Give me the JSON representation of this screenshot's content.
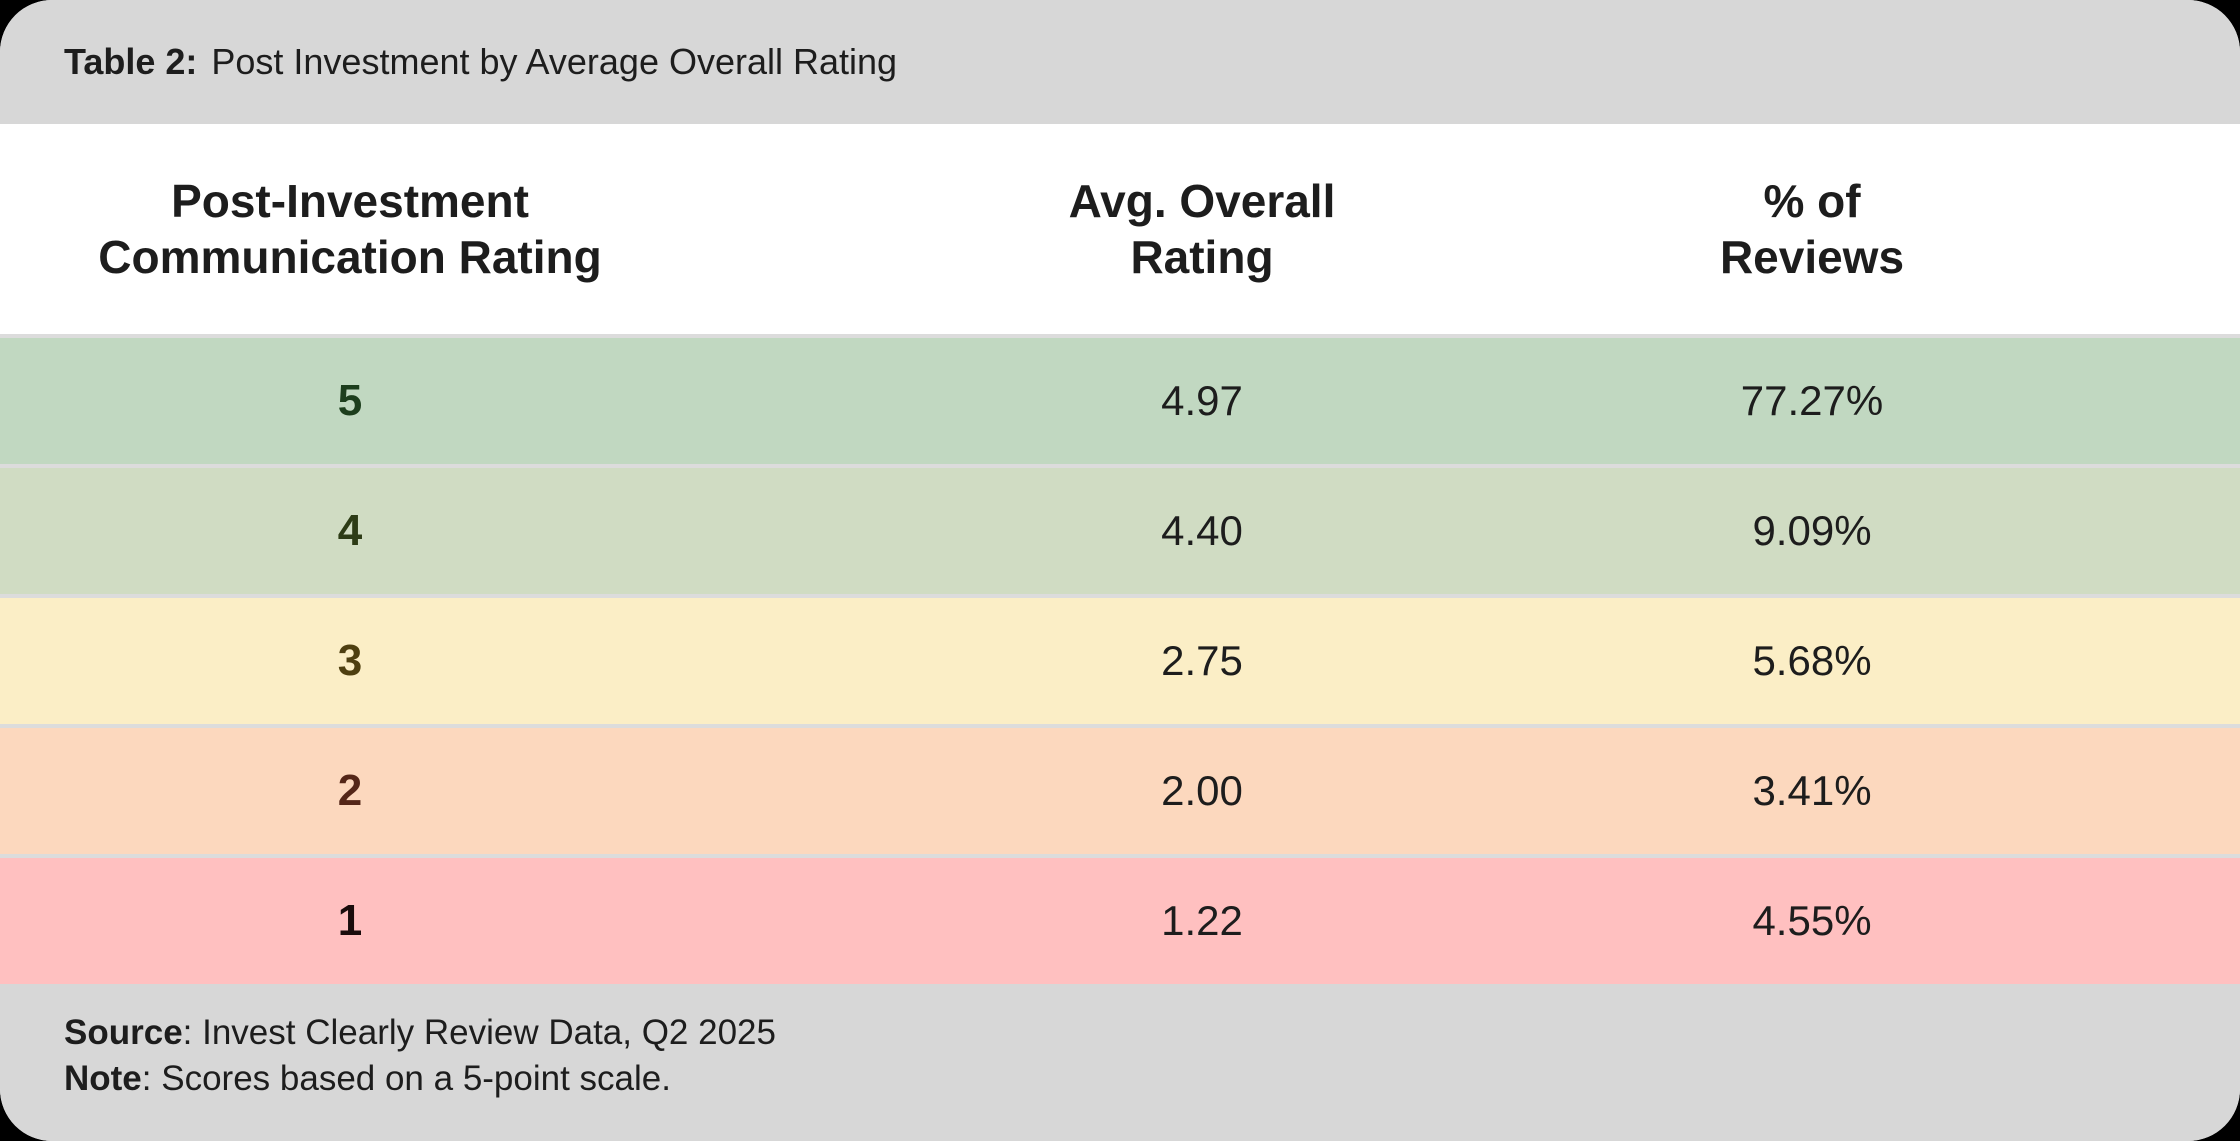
{
  "title": {
    "label": "Table 2:",
    "text": "Post Investment by Average Overall Rating"
  },
  "columns": [
    {
      "id": "communication_rating",
      "label": "Post-Investment\nCommunication Rating"
    },
    {
      "id": "avg_overall_rating",
      "label": "Avg. Overall\nRating"
    },
    {
      "id": "pct_of_reviews",
      "label": "% of\nReviews"
    }
  ],
  "rows": [
    {
      "rating": "5",
      "avg": "4.97",
      "pct": "77.27%",
      "bg": "#c1d8c1",
      "rating_color": "#1d3e1d"
    },
    {
      "rating": "4",
      "avg": "4.40",
      "pct": "9.09%",
      "bg": "#d0dcc3",
      "rating_color": "#2d3c16"
    },
    {
      "rating": "3",
      "avg": "2.75",
      "pct": "5.68%",
      "bg": "#fbeec6",
      "rating_color": "#4e3f10"
    },
    {
      "rating": "2",
      "avg": "2.00",
      "pct": "3.41%",
      "bg": "#fcd8be",
      "rating_color": "#542618"
    },
    {
      "rating": "1",
      "avg": "1.22",
      "pct": "4.55%",
      "bg": "#ffc0c0",
      "rating_color": "#1a0c0c"
    }
  ],
  "footer": {
    "source_label": "Source",
    "source_text": ": Invest Clearly Review Data, Q2 2025",
    "note_label": "Note",
    "note_text": ": Scores based on a 5-point scale."
  },
  "colors": {
    "page_bg": "#000000",
    "bar_bg": "#d7d7d7",
    "header_bg": "#ffffff",
    "separator": "#dcdcdc",
    "text": "#1d1d1d"
  },
  "chart_data": {
    "type": "table",
    "title": "Table 2: Post Investment by Average Overall Rating",
    "columns": [
      "Post-Investment Communication Rating",
      "Avg. Overall Rating",
      "% of Reviews"
    ],
    "rows": [
      [
        5,
        4.97,
        "77.27%"
      ],
      [
        4,
        4.4,
        "9.09%"
      ],
      [
        3,
        2.75,
        "5.68%"
      ],
      [
        2,
        2.0,
        "3.41%"
      ],
      [
        1,
        1.22,
        "4.55%"
      ]
    ],
    "source": "Invest Clearly Review Data, Q2 2025",
    "note": "Scores based on a 5-point scale."
  }
}
